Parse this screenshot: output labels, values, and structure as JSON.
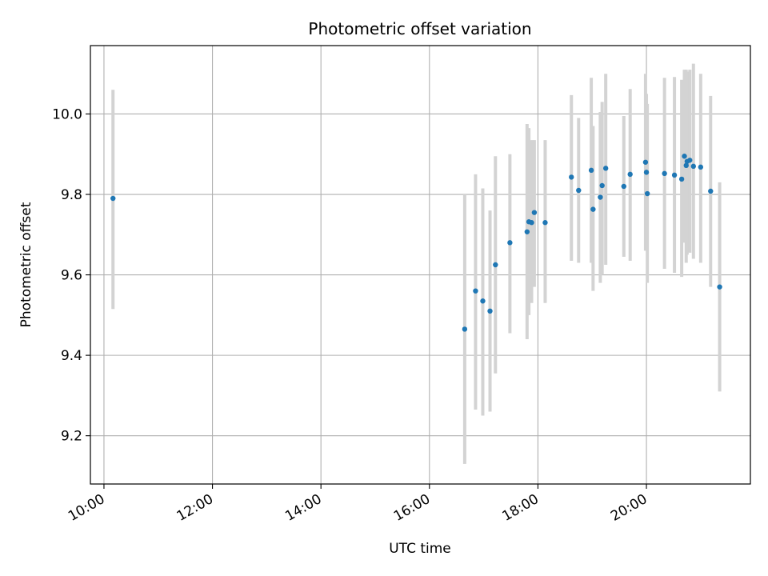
{
  "chart_data": {
    "type": "scatter",
    "title": "Photometric offset variation",
    "xlabel": "UTC time",
    "ylabel": "Photometric offset",
    "x_ticks": [
      "10:00",
      "12:00",
      "14:00",
      "16:00",
      "18:00",
      "20:00"
    ],
    "y_ticks": [
      "9.2",
      "9.4",
      "9.6",
      "9.8",
      "10.0"
    ],
    "xlim": [
      "09:45",
      "21:55"
    ],
    "ylim": [
      9.08,
      10.17
    ],
    "grid": true,
    "point_color": "#1f77b4",
    "errorbar_color": "#d3d3d3",
    "points": [
      {
        "t": "10:10",
        "y": 9.79,
        "lo": 9.515,
        "hi": 10.06
      },
      {
        "t": "16:39",
        "y": 9.465,
        "lo": 9.13,
        "hi": 9.8
      },
      {
        "t": "16:51",
        "y": 9.56,
        "lo": 9.265,
        "hi": 9.85
      },
      {
        "t": "16:59",
        "y": 9.535,
        "lo": 9.25,
        "hi": 9.815
      },
      {
        "t": "17:07",
        "y": 9.51,
        "lo": 9.26,
        "hi": 9.76
      },
      {
        "t": "17:13",
        "y": 9.625,
        "lo": 9.355,
        "hi": 9.895
      },
      {
        "t": "17:29",
        "y": 9.68,
        "lo": 9.455,
        "hi": 9.9
      },
      {
        "t": "17:48",
        "y": 9.707,
        "lo": 9.44,
        "hi": 9.975
      },
      {
        "t": "17:50",
        "y": 9.732,
        "lo": 9.5,
        "hi": 9.965
      },
      {
        "t": "17:53",
        "y": 9.73,
        "lo": 9.53,
        "hi": 9.935
      },
      {
        "t": "17:56",
        "y": 9.755,
        "lo": 9.57,
        "hi": 9.935
      },
      {
        "t": "18:08",
        "y": 9.73,
        "lo": 9.53,
        "hi": 9.935
      },
      {
        "t": "18:37",
        "y": 9.843,
        "lo": 9.635,
        "hi": 10.047
      },
      {
        "t": "18:45",
        "y": 9.81,
        "lo": 9.63,
        "hi": 9.99
      },
      {
        "t": "18:59",
        "y": 9.86,
        "lo": 9.63,
        "hi": 10.09
      },
      {
        "t": "19:01",
        "y": 9.763,
        "lo": 9.56,
        "hi": 9.97
      },
      {
        "t": "19:09",
        "y": 9.793,
        "lo": 9.58,
        "hi": 10.005
      },
      {
        "t": "19:11",
        "y": 9.822,
        "lo": 9.6,
        "hi": 10.03
      },
      {
        "t": "19:15",
        "y": 9.865,
        "lo": 9.625,
        "hi": 10.1
      },
      {
        "t": "19:35",
        "y": 9.82,
        "lo": 9.645,
        "hi": 9.995
      },
      {
        "t": "19:42",
        "y": 9.85,
        "lo": 9.635,
        "hi": 10.062
      },
      {
        "t": "19:59",
        "y": 9.88,
        "lo": 9.66,
        "hi": 10.1
      },
      {
        "t": "20:00",
        "y": 9.855,
        "lo": 9.66,
        "hi": 10.05
      },
      {
        "t": "20:01",
        "y": 9.802,
        "lo": 9.58,
        "hi": 10.025
      },
      {
        "t": "20:20",
        "y": 9.852,
        "lo": 9.615,
        "hi": 10.09
      },
      {
        "t": "20:31",
        "y": 9.848,
        "lo": 9.605,
        "hi": 10.092
      },
      {
        "t": "20:39",
        "y": 9.838,
        "lo": 9.595,
        "hi": 10.085
      },
      {
        "t": "20:42",
        "y": 9.895,
        "lo": 9.68,
        "hi": 10.11
      },
      {
        "t": "20:44",
        "y": 9.872,
        "lo": 9.63,
        "hi": 10.11
      },
      {
        "t": "20:45",
        "y": 9.882,
        "lo": 9.65,
        "hi": 10.105
      },
      {
        "t": "20:48",
        "y": 9.885,
        "lo": 9.655,
        "hi": 10.11
      },
      {
        "t": "20:52",
        "y": 9.87,
        "lo": 9.64,
        "hi": 10.125
      },
      {
        "t": "21:00",
        "y": 9.868,
        "lo": 9.63,
        "hi": 10.1
      },
      {
        "t": "21:11",
        "y": 9.808,
        "lo": 9.57,
        "hi": 10.045
      },
      {
        "t": "21:21",
        "y": 9.57,
        "lo": 9.31,
        "hi": 9.83
      }
    ]
  }
}
